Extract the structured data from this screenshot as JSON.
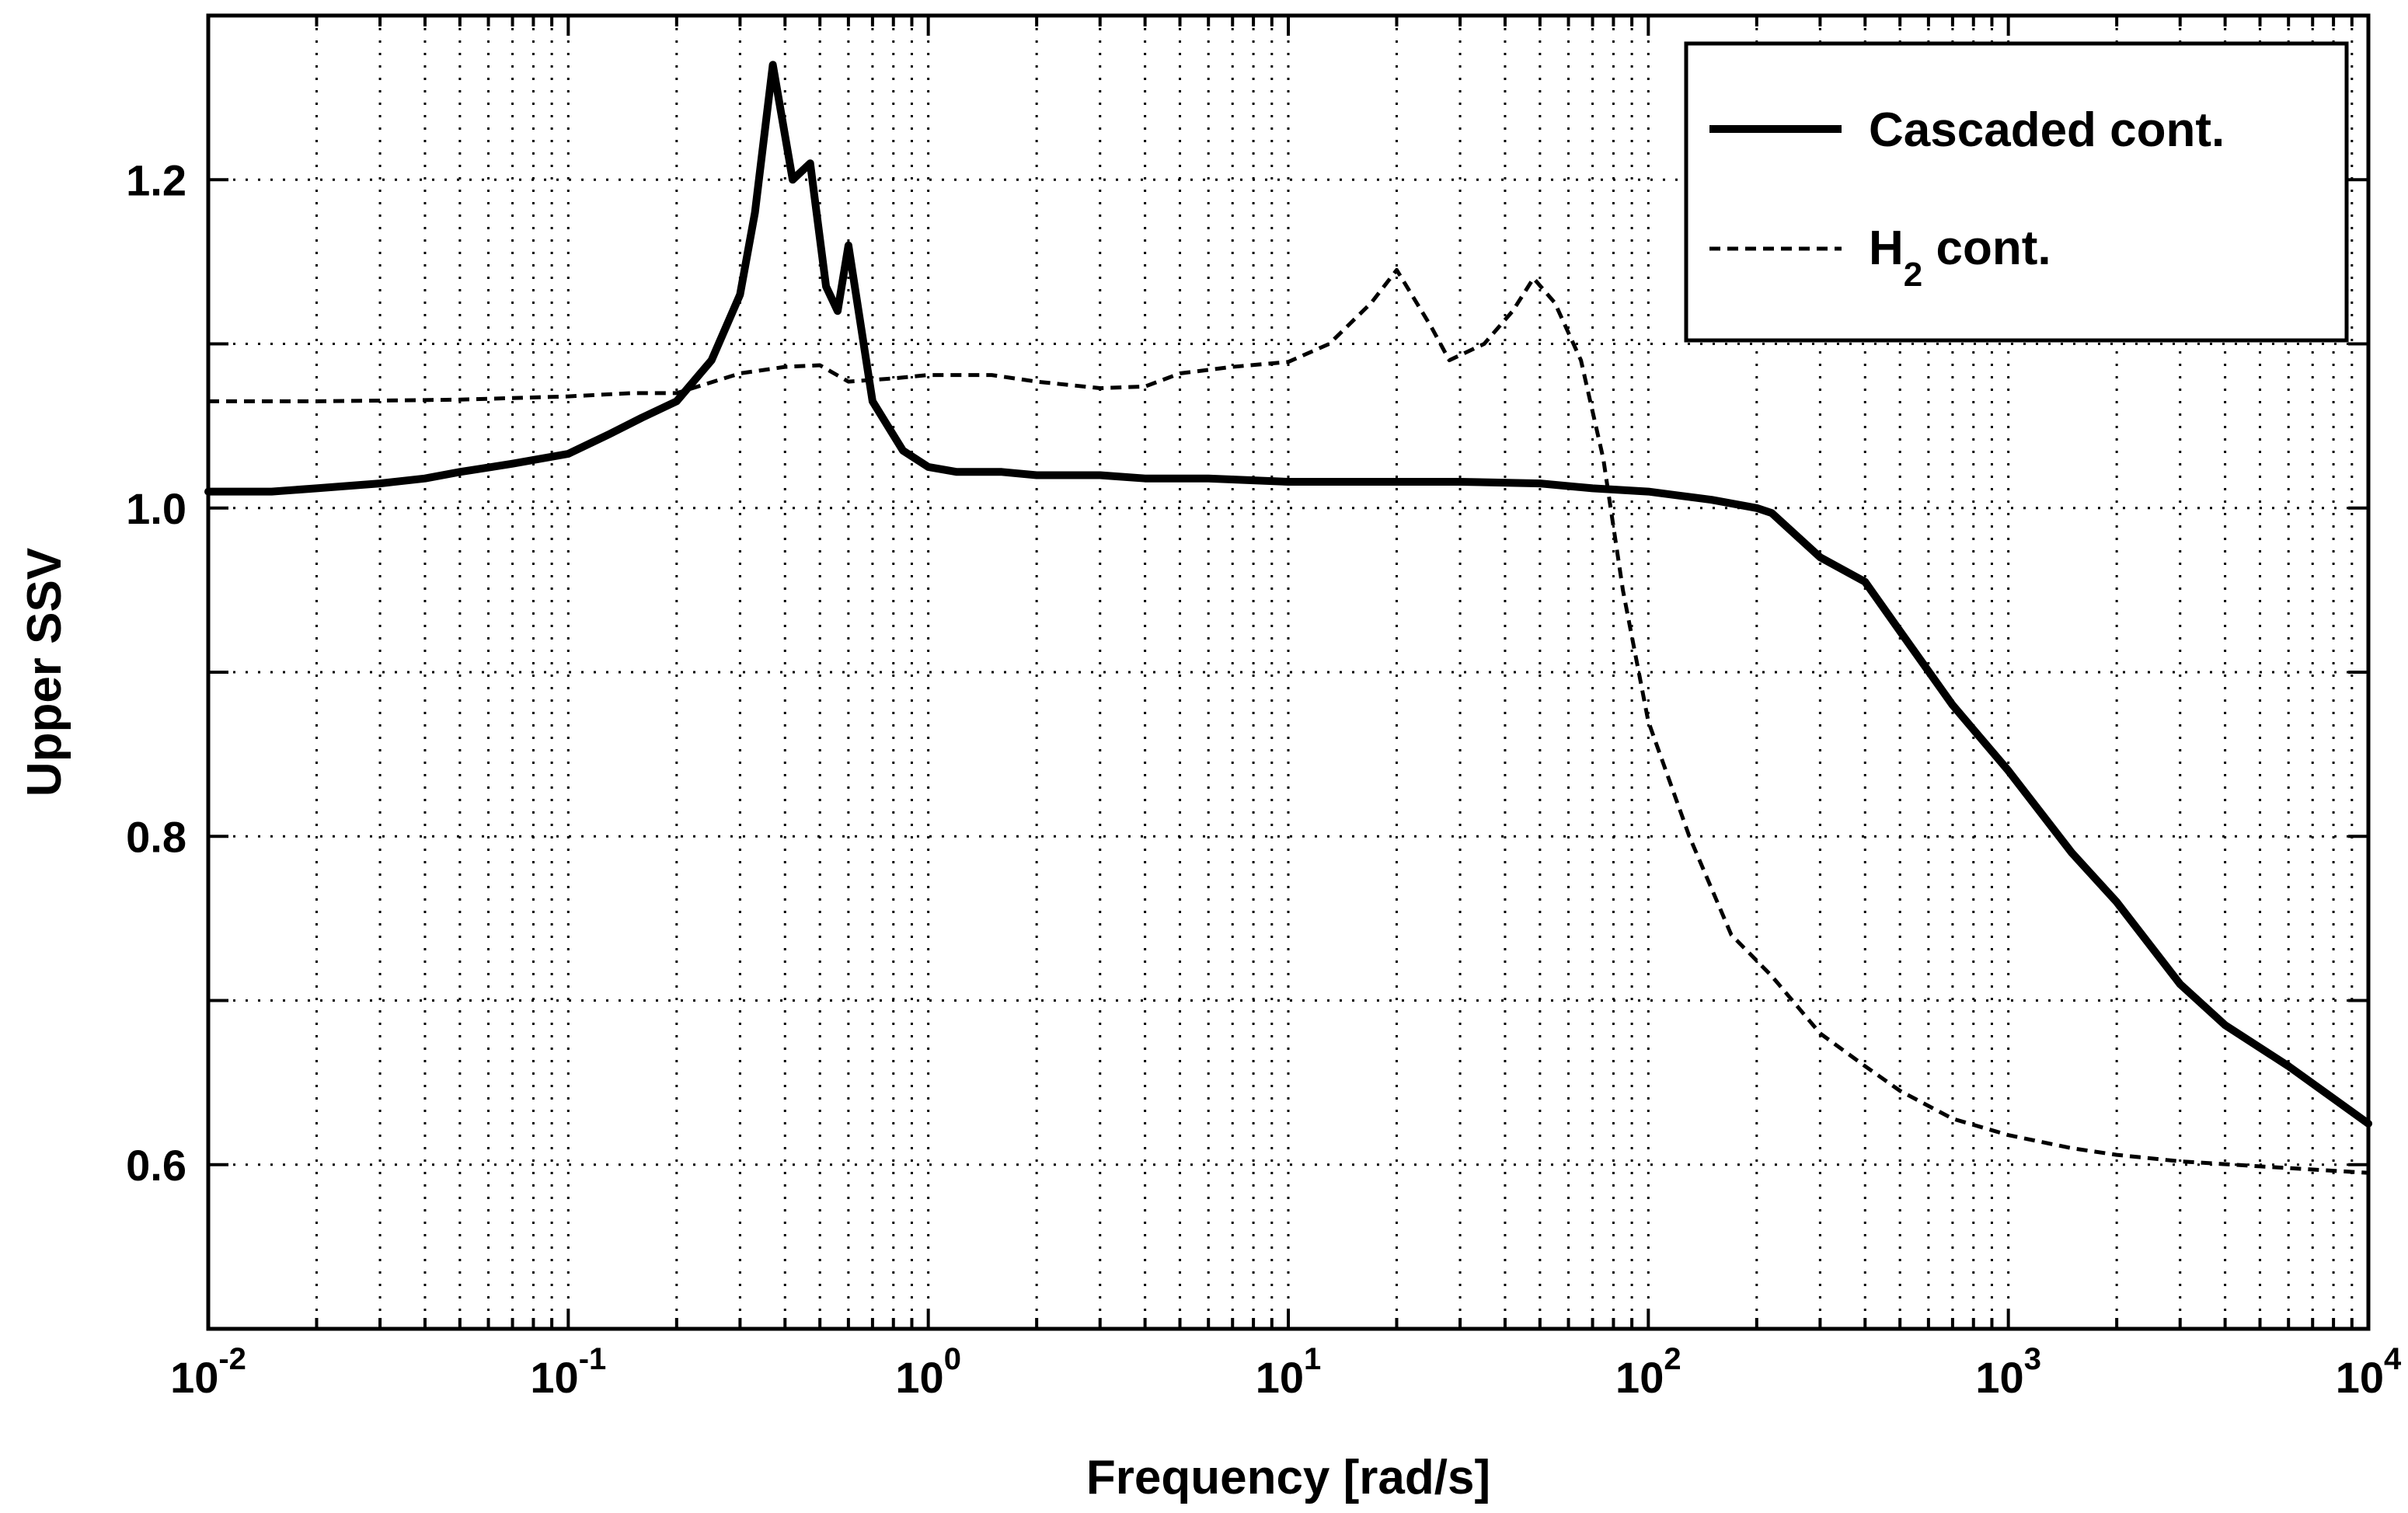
{
  "chart_data": {
    "type": "line",
    "title": "",
    "xlabel": "Frequency [rad/s]",
    "ylabel": "Upper SSV",
    "xscale": "log",
    "xlim": [
      0.01,
      10000
    ],
    "ylim": [
      0.5,
      1.3
    ],
    "x_ticks": [
      {
        "base": "10",
        "exp": "-2",
        "value": 0.01
      },
      {
        "base": "10",
        "exp": "-1",
        "value": 0.1
      },
      {
        "base": "10",
        "exp": "0",
        "value": 1
      },
      {
        "base": "10",
        "exp": "1",
        "value": 10
      },
      {
        "base": "10",
        "exp": "2",
        "value": 100
      },
      {
        "base": "10",
        "exp": "3",
        "value": 1000
      },
      {
        "base": "10",
        "exp": "4",
        "value": 10000
      }
    ],
    "y_ticks": [
      {
        "label": "0.6",
        "value": 0.6
      },
      {
        "label": "0.8",
        "value": 0.8
      },
      {
        "label": "1.0",
        "value": 1.0
      },
      {
        "label": "1.2",
        "value": 1.2
      }
    ],
    "y_minor_grid": [
      0.7,
      0.9,
      1.1
    ],
    "grid": true,
    "legend_position": "top-right",
    "series": [
      {
        "name": "Cascaded cont.",
        "style": "solid",
        "color": "#000000",
        "points": [
          [
            0.01,
            1.01
          ],
          [
            0.015,
            1.01
          ],
          [
            0.02,
            1.012
          ],
          [
            0.03,
            1.015
          ],
          [
            0.04,
            1.018
          ],
          [
            0.05,
            1.022
          ],
          [
            0.07,
            1.027
          ],
          [
            0.1,
            1.033
          ],
          [
            0.13,
            1.045
          ],
          [
            0.16,
            1.055
          ],
          [
            0.2,
            1.065
          ],
          [
            0.25,
            1.09
          ],
          [
            0.3,
            1.13
          ],
          [
            0.33,
            1.18
          ],
          [
            0.37,
            1.27
          ],
          [
            0.42,
            1.2
          ],
          [
            0.47,
            1.21
          ],
          [
            0.52,
            1.135
          ],
          [
            0.56,
            1.12
          ],
          [
            0.6,
            1.16
          ],
          [
            0.7,
            1.065
          ],
          [
            0.85,
            1.035
          ],
          [
            1.0,
            1.025
          ],
          [
            1.2,
            1.022
          ],
          [
            1.6,
            1.022
          ],
          [
            2.0,
            1.02
          ],
          [
            3.0,
            1.02
          ],
          [
            4.0,
            1.018
          ],
          [
            6.0,
            1.018
          ],
          [
            10,
            1.016
          ],
          [
            20,
            1.016
          ],
          [
            30,
            1.016
          ],
          [
            50,
            1.015
          ],
          [
            70,
            1.012
          ],
          [
            100,
            1.01
          ],
          [
            150,
            1.005
          ],
          [
            200,
            1.0
          ],
          [
            220,
            0.997
          ],
          [
            300,
            0.97
          ],
          [
            400,
            0.955
          ],
          [
            500,
            0.925
          ],
          [
            700,
            0.88
          ],
          [
            1000,
            0.84
          ],
          [
            1500,
            0.79
          ],
          [
            2000,
            0.76
          ],
          [
            3000,
            0.71
          ],
          [
            4000,
            0.685
          ],
          [
            6000,
            0.66
          ],
          [
            10000,
            0.625
          ]
        ]
      },
      {
        "name": "H2 cont.",
        "name_display": {
          "main": "H",
          "sub": "2",
          "rest": " cont."
        },
        "style": "dashed",
        "color": "#000000",
        "points": [
          [
            0.01,
            1.065
          ],
          [
            0.02,
            1.065
          ],
          [
            0.05,
            1.066
          ],
          [
            0.1,
            1.068
          ],
          [
            0.15,
            1.07
          ],
          [
            0.2,
            1.07
          ],
          [
            0.3,
            1.082
          ],
          [
            0.4,
            1.086
          ],
          [
            0.5,
            1.087
          ],
          [
            0.6,
            1.077
          ],
          [
            0.8,
            1.079
          ],
          [
            1.0,
            1.081
          ],
          [
            1.5,
            1.081
          ],
          [
            2.0,
            1.077
          ],
          [
            3.0,
            1.073
          ],
          [
            4.0,
            1.074
          ],
          [
            5.0,
            1.082
          ],
          [
            7.0,
            1.086
          ],
          [
            10,
            1.089
          ],
          [
            13,
            1.1
          ],
          [
            17,
            1.125
          ],
          [
            20,
            1.145
          ],
          [
            25,
            1.11
          ],
          [
            28,
            1.09
          ],
          [
            35,
            1.1
          ],
          [
            42,
            1.12
          ],
          [
            48,
            1.14
          ],
          [
            55,
            1.125
          ],
          [
            65,
            1.09
          ],
          [
            75,
            1.03
          ],
          [
            85,
            0.95
          ],
          [
            100,
            0.87
          ],
          [
            130,
            0.8
          ],
          [
            170,
            0.74
          ],
          [
            220,
            0.715
          ],
          [
            300,
            0.68
          ],
          [
            400,
            0.66
          ],
          [
            500,
            0.645
          ],
          [
            700,
            0.628
          ],
          [
            1000,
            0.618
          ],
          [
            1500,
            0.61
          ],
          [
            2000,
            0.606
          ],
          [
            3000,
            0.602
          ],
          [
            5000,
            0.599
          ],
          [
            10000,
            0.595
          ]
        ]
      }
    ]
  }
}
